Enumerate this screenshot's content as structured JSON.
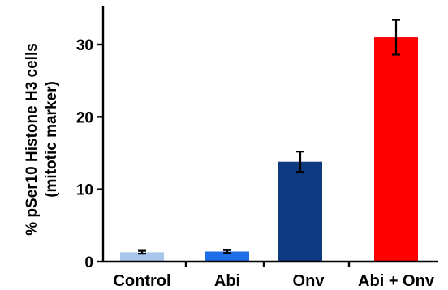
{
  "chart_data": {
    "type": "bar",
    "categories": [
      "Control",
      "Abi",
      "Onv",
      "Abi + Onv"
    ],
    "values": [
      1.3,
      1.4,
      13.8,
      31.0
    ],
    "error": [
      0.2,
      0.2,
      1.4,
      2.4
    ],
    "colors": [
      "#a8c6ec",
      "#1f6fe8",
      "#0d3a80",
      "#ff0000"
    ],
    "ylabel": "% pSer10 Histone H3 cells",
    "ylabel_sub": "(mitotic marker)",
    "yticks": [
      0,
      10,
      20,
      30
    ],
    "ylim": [
      0,
      35
    ],
    "grid": false,
    "legend": "none"
  }
}
